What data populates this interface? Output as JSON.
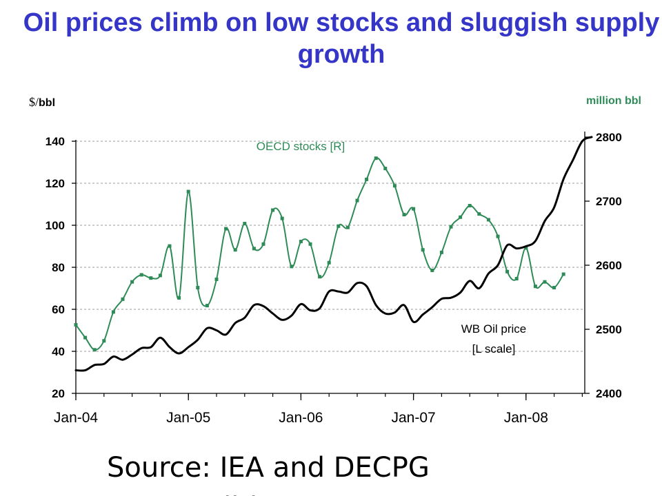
{
  "title": "Oil prices climb on low stocks and sluggish supply growth",
  "unit_left_symbol": "$/",
  "unit_left_text": "bbl",
  "unit_right": "million bbl",
  "source": "Source: IEA and DECPG Commodities Group",
  "colors": {
    "title": "#3535c8",
    "stocks": "#2e8b57",
    "price": "#000000"
  },
  "chart_data": {
    "type": "line",
    "x_ticks": [
      "Jan-04",
      "Jan-05",
      "Jan-06",
      "Jan-07",
      "Jan-08"
    ],
    "x_tick_values": [
      0,
      12,
      24,
      36,
      48
    ],
    "left_axis": {
      "ticks": [
        20,
        40,
        60,
        80,
        100,
        120,
        140
      ],
      "ylim": [
        20,
        140
      ]
    },
    "right_axis": {
      "ticks": [
        2400,
        2500,
        2600,
        2700,
        2800
      ],
      "ylim": [
        2400,
        2800
      ]
    },
    "grid": true,
    "series": [
      {
        "name": "OECD stocks [R]",
        "axis": "right",
        "markers": true,
        "x": [
          0,
          1,
          2,
          3,
          4,
          5,
          6,
          7,
          8,
          9,
          10,
          11,
          12,
          13,
          14,
          15,
          16,
          17,
          18,
          19,
          20,
          21,
          22,
          23,
          24,
          25,
          26,
          27,
          28,
          29,
          30,
          31,
          32,
          33,
          34,
          35,
          36,
          37,
          38,
          39,
          40,
          41,
          42,
          43,
          44,
          45,
          46,
          47,
          48,
          49,
          50,
          51,
          52
        ],
        "values": [
          2507,
          2487,
          2468,
          2482,
          2527,
          2547,
          2574,
          2585,
          2580,
          2584,
          2630,
          2549,
          2715,
          2565,
          2537,
          2578,
          2657,
          2624,
          2665,
          2626,
          2633,
          2686,
          2673,
          2598,
          2637,
          2633,
          2582,
          2604,
          2661,
          2659,
          2701,
          2734,
          2767,
          2751,
          2724,
          2679,
          2688,
          2624,
          2592,
          2620,
          2660,
          2675,
          2693,
          2680,
          2671,
          2645,
          2590,
          2579,
          2627,
          2567,
          2574,
          2565,
          2586
        ]
      },
      {
        "name": "WB Oil price [L scale]",
        "axis": "left",
        "markers": false,
        "x": [
          0,
          1,
          2,
          3,
          4,
          5,
          6,
          7,
          8,
          9,
          10,
          11,
          12,
          13,
          14,
          15,
          16,
          17,
          18,
          19,
          20,
          21,
          22,
          23,
          24,
          25,
          26,
          27,
          28,
          29,
          30,
          31,
          32,
          33,
          34,
          35,
          36,
          37,
          38,
          39,
          40,
          41,
          42,
          43,
          44,
          45,
          46,
          47,
          48,
          49,
          50,
          51,
          52,
          53,
          54,
          55
        ],
        "values": [
          31,
          31,
          33.5,
          34,
          37.5,
          36,
          38.5,
          41.5,
          42,
          46.5,
          42,
          39,
          42,
          45.5,
          51,
          50,
          48,
          53.5,
          56,
          62,
          61.5,
          58,
          55,
          57,
          62.5,
          59.5,
          60.5,
          68.5,
          68.5,
          68,
          72.5,
          71,
          62,
          58,
          58.5,
          62,
          54,
          57.5,
          61,
          65,
          65.5,
          68,
          73.5,
          70,
          77,
          81,
          90.5,
          89,
          90,
          92.5,
          102,
          108.5,
          122,
          131,
          140,
          142
        ]
      }
    ],
    "annotations": [
      "OECD stocks [R]",
      "WB Oil price",
      "[L scale]"
    ]
  }
}
